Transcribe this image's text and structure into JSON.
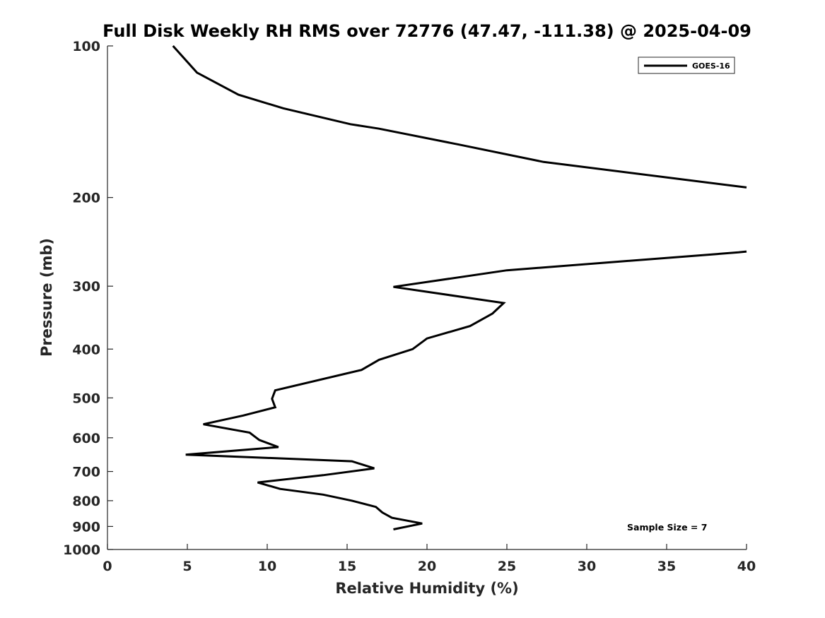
{
  "chart_data": {
    "type": "line",
    "title": "Full Disk Weekly RH RMS over 72776 (47.47, -111.38) @ 2025-04-09",
    "xlabel": "Relative Humidity (%)",
    "ylabel": "Pressure (mb)",
    "xlim": [
      0,
      40
    ],
    "ylim": [
      1000,
      100
    ],
    "yscale": "log",
    "y_reversed": true,
    "xticks": [
      0,
      5,
      10,
      15,
      20,
      25,
      30,
      35,
      40
    ],
    "yticks": [
      100,
      200,
      300,
      400,
      500,
      600,
      700,
      800,
      900,
      1000
    ],
    "grid": false,
    "legend_position": "top-right",
    "line_color": "#000000",
    "annotation": "Sample Size = 7",
    "series": [
      {
        "name": "GOES-16",
        "segments": [
          [
            {
              "x": 4.1,
              "y": 100
            },
            {
              "x": 5.6,
              "y": 113
            },
            {
              "x": 8.2,
              "y": 125
            },
            {
              "x": 11.0,
              "y": 133
            },
            {
              "x": 15.2,
              "y": 143
            },
            {
              "x": 17.0,
              "y": 146
            },
            {
              "x": 22.0,
              "y": 157
            },
            {
              "x": 27.3,
              "y": 170
            },
            {
              "x": 40.0,
              "y": 191
            }
          ],
          [
            {
              "x": 40.0,
              "y": 256
            },
            {
              "x": 39.5,
              "y": 257
            },
            {
              "x": 25.0,
              "y": 279
            },
            {
              "x": 17.9,
              "y": 301
            },
            {
              "x": 24.8,
              "y": 324
            },
            {
              "x": 24.1,
              "y": 340
            },
            {
              "x": 22.7,
              "y": 360
            },
            {
              "x": 20.0,
              "y": 381
            },
            {
              "x": 19.1,
              "y": 400
            },
            {
              "x": 17.0,
              "y": 420
            },
            {
              "x": 15.9,
              "y": 440
            },
            {
              "x": 10.5,
              "y": 483
            },
            {
              "x": 10.3,
              "y": 502
            },
            {
              "x": 10.5,
              "y": 522
            },
            {
              "x": 8.5,
              "y": 542
            },
            {
              "x": 6.0,
              "y": 564
            },
            {
              "x": 8.9,
              "y": 586
            },
            {
              "x": 9.5,
              "y": 606
            },
            {
              "x": 10.7,
              "y": 626
            },
            {
              "x": 4.9,
              "y": 648
            },
            {
              "x": 15.3,
              "y": 668
            },
            {
              "x": 16.7,
              "y": 690
            },
            {
              "x": 13.5,
              "y": 712
            },
            {
              "x": 9.4,
              "y": 736
            },
            {
              "x": 10.8,
              "y": 758
            },
            {
              "x": 13.5,
              "y": 778
            },
            {
              "x": 15.3,
              "y": 800
            },
            {
              "x": 16.8,
              "y": 823
            },
            {
              "x": 17.2,
              "y": 844
            },
            {
              "x": 17.8,
              "y": 865
            },
            {
              "x": 19.7,
              "y": 888
            },
            {
              "x": 17.9,
              "y": 912
            }
          ]
        ]
      }
    ]
  }
}
